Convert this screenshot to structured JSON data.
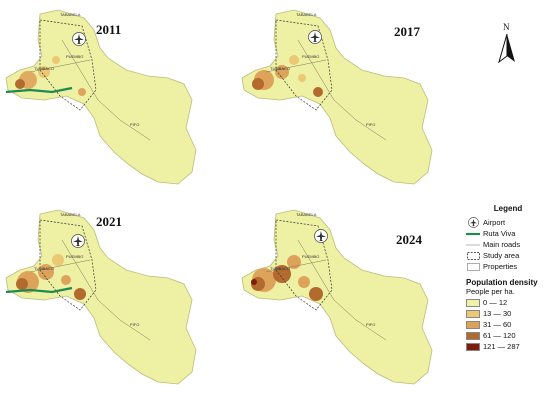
{
  "panels": [
    {
      "year": "2011",
      "density_level": 1
    },
    {
      "year": "2017",
      "density_level": 2
    },
    {
      "year": "2021",
      "density_level": 3
    },
    {
      "year": "2024",
      "density_level": 4
    }
  ],
  "map_labels": {
    "north": "TABABELA",
    "center": "PUEMBO",
    "west": "TUMBACO",
    "south": "PIFO"
  },
  "north_arrow": {
    "letter": "N"
  },
  "legend": {
    "title": "Legend",
    "items": [
      {
        "label": "Airport",
        "icon": "airport-icon"
      },
      {
        "label": "Ruta Viva",
        "icon": "green-line"
      },
      {
        "label": "Main roads",
        "icon": "thin-line"
      },
      {
        "label": "Study area",
        "icon": "dashed-box"
      },
      {
        "label": "Properties",
        "icon": "box"
      }
    ],
    "density_title": "Population density",
    "density_unit": "People per ha.",
    "classes": [
      {
        "label": "0 — 12",
        "color": "#f0f0a8"
      },
      {
        "label": "13 — 30",
        "color": "#edc873"
      },
      {
        "label": "31 — 60",
        "color": "#dea35a"
      },
      {
        "label": "61 — 120",
        "color": "#b26a2e"
      },
      {
        "label": "121 — 287",
        "color": "#7f1d0c"
      }
    ]
  },
  "colors": {
    "base": "#eef0a4",
    "ruta_viva": "#1e8a52",
    "outline": "#bcbc7a"
  }
}
